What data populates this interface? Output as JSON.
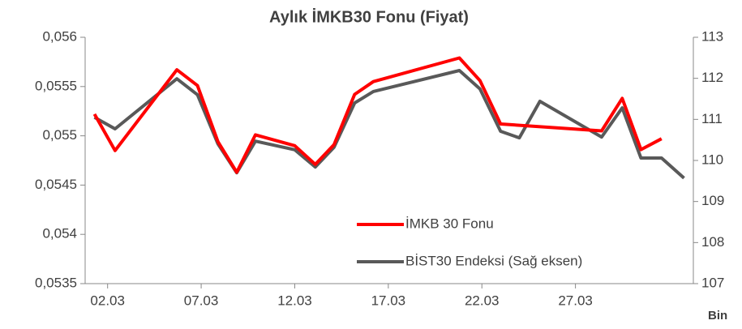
{
  "chart_data": {
    "type": "line",
    "title": "Aylık İMKB30 Fonu (Fiyat)",
    "note": "Bin",
    "xlim": [
      0.8,
      33.3
    ],
    "xticks": [
      {
        "value": 2,
        "label": "02.03"
      },
      {
        "value": 7,
        "label": "07.03"
      },
      {
        "value": 12,
        "label": "12.03"
      },
      {
        "value": 17,
        "label": "17.03"
      },
      {
        "value": 22,
        "label": "22.03"
      },
      {
        "value": 27,
        "label": "27.03"
      }
    ],
    "ylim": [
      0.0535,
      0.056
    ],
    "yticks": [
      {
        "value": 0.0535,
        "label": "0,0535"
      },
      {
        "value": 0.054,
        "label": "0,054"
      },
      {
        "value": 0.0545,
        "label": "0,0545"
      },
      {
        "value": 0.055,
        "label": "0,055"
      },
      {
        "value": 0.0555,
        "label": "0,0555"
      },
      {
        "value": 0.056,
        "label": "0,056"
      }
    ],
    "y2lim": [
      107,
      113
    ],
    "y2ticks": [
      107,
      108,
      109,
      110,
      111,
      112,
      113
    ],
    "legend": "center",
    "series": [
      {
        "name": "İMKB 30 Fonu",
        "color": "#ff0000",
        "x": [
          1.3,
          2.4,
          5.7,
          6.8,
          7.9,
          8.9,
          9.9,
          12.0,
          13.1,
          14.1,
          15.2,
          16.2,
          20.8,
          21.9,
          23.0,
          28.4,
          29.5,
          30.5,
          31.6
        ],
        "values": [
          0.05522,
          0.05485,
          0.05567,
          0.05551,
          0.05494,
          0.05463,
          0.05501,
          0.0549,
          0.05471,
          0.05491,
          0.05542,
          0.05555,
          0.05579,
          0.05556,
          0.05512,
          0.05505,
          0.05538,
          0.05486,
          0.05497
        ]
      },
      {
        "name": "BİST30 Endeksi (Sağ eksen)",
        "color": "#595959",
        "axis": "y2",
        "x": [
          1.3,
          2.4,
          5.7,
          6.8,
          7.9,
          8.9,
          9.9,
          12.0,
          13.1,
          14.1,
          15.2,
          16.2,
          20.8,
          21.9,
          23.0,
          24.0,
          25.1,
          28.4,
          29.5,
          30.5,
          31.6,
          32.8
        ],
        "values": [
          111.05,
          110.77,
          111.99,
          111.6,
          110.4,
          109.7,
          110.47,
          110.26,
          109.84,
          110.32,
          111.4,
          111.68,
          112.19,
          111.74,
          110.71,
          110.55,
          111.44,
          110.57,
          111.28,
          110.06,
          110.06,
          109.57
        ]
      }
    ]
  }
}
